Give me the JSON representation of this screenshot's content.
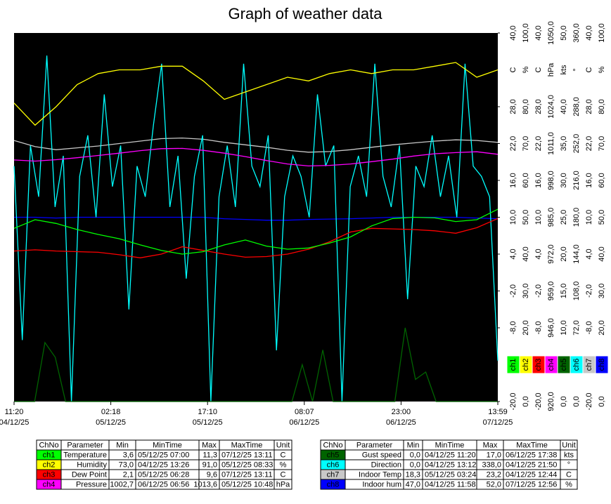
{
  "chart_data": {
    "type": "line",
    "title": "Graph of weather data",
    "x_labels": [
      {
        "time": "11:20",
        "date": "04/12/25"
      },
      {
        "time": "02:18",
        "date": "05/12/25"
      },
      {
        "time": "17:10",
        "date": "05/12/25"
      },
      {
        "time": "08:07",
        "date": "06/12/25"
      },
      {
        "time": "23:00",
        "date": "06/12/25"
      },
      {
        "time": "13:59",
        "date": "07/12/25"
      }
    ],
    "table_headers": [
      "ChNo",
      "Parameter",
      "Min",
      "MinTime",
      "Max",
      "MaxTime",
      "Unit"
    ],
    "series": [
      {
        "channel": "ch1",
        "name": "Temperature",
        "color": "#00ff00",
        "unit": "C",
        "min": "3,6",
        "min_time": "05/12/25 07:00",
        "max": "11,3",
        "max_time": "07/12/25 13:11",
        "ylim": [
          -20,
          40
        ],
        "yticks": [
          {
            "value": 40,
            "label": "40,0"
          },
          {
            "value": 28,
            "label": "28,0"
          },
          {
            "value": 22,
            "label": "22,0"
          },
          {
            "value": 16,
            "label": "16,0"
          },
          {
            "value": 10,
            "label": "10,0"
          },
          {
            "value": 4,
            "label": "4,0"
          },
          {
            "value": -2,
            "label": "-2,0"
          },
          {
            "value": -8,
            "label": "-8,0"
          },
          {
            "value": -20,
            "label": "-20,0"
          }
        ],
        "values": [
          8.2,
          9.6,
          9.0,
          8.0,
          7.2,
          6.5,
          5.5,
          4.6,
          4.0,
          4.4,
          5.5,
          6.3,
          5.3,
          4.8,
          5.0,
          5.8,
          6.8,
          8.6,
          9.8,
          10.0,
          9.9,
          9.3,
          9.6,
          11.3
        ]
      },
      {
        "channel": "ch2",
        "name": "Humidity",
        "color": "#ffff00",
        "unit": "%",
        "min": "73,0",
        "min_time": "04/12/25 13:26",
        "max": "91,0",
        "max_time": "05/12/25 08:33",
        "ylim": [
          0,
          100
        ],
        "yticks": [
          {
            "value": 100,
            "label": "100,0"
          },
          {
            "value": 80,
            "label": "80,0"
          },
          {
            "value": 70,
            "label": "70,0"
          },
          {
            "value": 60,
            "label": "60,0"
          },
          {
            "value": 50,
            "label": "50,0"
          },
          {
            "value": 40,
            "label": "40,0"
          },
          {
            "value": 30,
            "label": "30,0"
          },
          {
            "value": 20,
            "label": "20,0"
          },
          {
            "value": 0,
            "label": "0,0"
          }
        ],
        "values": [
          81,
          75,
          80,
          86,
          89,
          90,
          90,
          91,
          91,
          87,
          82,
          84,
          86,
          88,
          87,
          89,
          90,
          89,
          90,
          90,
          91,
          92,
          88,
          90
        ]
      },
      {
        "channel": "ch3",
        "name": "Dew Point",
        "color": "#ff0000",
        "unit": "C",
        "min": "2,1",
        "min_time": "05/12/25 06:28",
        "max": "9,6",
        "max_time": "07/12/25 13:11",
        "ylim": [
          -20,
          40
        ],
        "yticks": [
          {
            "value": 40,
            "label": "40,0"
          },
          {
            "value": 28,
            "label": "28,0"
          },
          {
            "value": 22,
            "label": "22,0"
          },
          {
            "value": 16,
            "label": "16,0"
          },
          {
            "value": 10,
            "label": "10,0"
          },
          {
            "value": 4,
            "label": "4,0"
          },
          {
            "value": -2,
            "label": "-2,0"
          },
          {
            "value": -8,
            "label": "-8,0"
          },
          {
            "value": -20,
            "label": "-20,0"
          }
        ],
        "values": [
          4.5,
          4.7,
          4.5,
          4.4,
          4.3,
          3.9,
          3.4,
          4.0,
          5.2,
          4.6,
          4.0,
          3.5,
          3.6,
          4.0,
          4.8,
          6.0,
          7.6,
          8.2,
          8.1,
          8.0,
          7.8,
          7.4,
          8.3,
          9.8
        ]
      },
      {
        "channel": "ch4",
        "name": "Pressure",
        "color": "#ff00ff",
        "unit": "hPa",
        "min": "1002,7",
        "min_time": "06/12/25 06:56",
        "max": "1013,6",
        "max_time": "05/12/25 10:48",
        "ylim": [
          920,
          1050
        ],
        "yticks": [
          {
            "value": 1050,
            "label": "1050,0"
          },
          {
            "value": 1024,
            "label": "1024,0"
          },
          {
            "value": 1011,
            "label": "1011,0"
          },
          {
            "value": 998,
            "label": "998,0"
          },
          {
            "value": 985,
            "label": "985,0"
          },
          {
            "value": 972,
            "label": "972,0"
          },
          {
            "value": 959,
            "label": "959,0"
          },
          {
            "value": 946,
            "label": "946,0"
          },
          {
            "value": 920,
            "label": "920,0"
          }
        ],
        "values": [
          1005.2,
          1004.8,
          1005.3,
          1006,
          1006.8,
          1007.6,
          1008.5,
          1009.2,
          1009.3,
          1008.6,
          1007.6,
          1006.4,
          1005,
          1003.8,
          1003.1,
          1003.3,
          1003.8,
          1004.6,
          1005.5,
          1006.6,
          1007.4,
          1007.8,
          1008.1,
          1007.2
        ]
      },
      {
        "channel": "ch5",
        "name": "Gust speed",
        "color": "#006400",
        "unit": "kts",
        "min": "0,0",
        "min_time": "04/12/25 11:20",
        "max": "17,0",
        "max_time": "06/12/25 17:38",
        "ylim": [
          0,
          50
        ],
        "yticks": [
          {
            "value": 50,
            "label": "50,0"
          },
          {
            "value": 40,
            "label": "40,0"
          },
          {
            "value": 35,
            "label": "35,0"
          },
          {
            "value": 30,
            "label": "30,0"
          },
          {
            "value": 25,
            "label": "25,0"
          },
          {
            "value": 20,
            "label": "20,0"
          },
          {
            "value": 15,
            "label": "15,0"
          },
          {
            "value": 10,
            "label": "10,0"
          },
          {
            "value": 0,
            "label": "0,0"
          }
        ],
        "values": [
          0,
          0,
          0,
          8,
          6,
          0,
          0,
          0,
          0,
          0,
          0,
          0,
          0,
          0,
          0,
          0,
          0,
          0,
          0,
          0,
          0,
          0,
          0,
          0,
          0,
          0,
          0,
          0,
          5,
          0,
          7,
          0,
          0,
          0,
          0,
          0,
          0,
          0,
          10,
          3,
          4,
          0,
          0,
          0,
          0,
          0,
          0,
          0
        ]
      },
      {
        "channel": "ch6",
        "name": "Direction",
        "color": "#00ffff",
        "unit": "°",
        "min": "0,0",
        "min_time": "04/12/25 13:12",
        "max": "338,0",
        "max_time": "04/12/25 21:50",
        "ylim": [
          0,
          360
        ],
        "yticks": [
          {
            "value": 360,
            "label": "360,0"
          },
          {
            "value": 288,
            "label": "288,0"
          },
          {
            "value": 252,
            "label": "252,0"
          },
          {
            "value": 216,
            "label": "216,0"
          },
          {
            "value": 180,
            "label": "180,0"
          },
          {
            "value": 144,
            "label": "144,0"
          },
          {
            "value": 108,
            "label": "108,0"
          },
          {
            "value": 72,
            "label": "72,0"
          },
          {
            "value": 0,
            "label": "0,0"
          }
        ],
        "values": [
          230,
          60,
          250,
          200,
          338,
          190,
          240,
          0,
          220,
          260,
          180,
          300,
          210,
          250,
          90,
          230,
          200,
          270,
          330,
          190,
          240,
          120,
          220,
          260,
          0,
          200,
          250,
          190,
          330,
          230,
          210,
          260,
          50,
          200,
          240,
          220,
          180,
          300,
          230,
          250,
          0,
          210,
          240,
          200,
          330,
          220,
          190,
          250,
          100,
          230,
          210,
          260,
          200,
          240,
          180,
          330,
          230,
          220,
          200,
          40
        ]
      },
      {
        "channel": "ch7",
        "name": "Indoor Temp",
        "color": "#c8c8c8",
        "unit": "C",
        "min": "18,3",
        "min_time": "05/12/25 03:24",
        "max": "23,2",
        "max_time": "04/12/25 12:44",
        "ylim": [
          -20,
          40
        ],
        "yticks": [
          {
            "value": 40,
            "label": "40,0"
          },
          {
            "value": 28,
            "label": "28,0"
          },
          {
            "value": 22,
            "label": "22,0"
          },
          {
            "value": 16,
            "label": "16,0"
          },
          {
            "value": 10,
            "label": "10,0"
          },
          {
            "value": 4,
            "label": "4,0"
          },
          {
            "value": -2,
            "label": "-2,0"
          },
          {
            "value": -8,
            "label": "-8,0"
          },
          {
            "value": -20,
            "label": "-20,0"
          }
        ],
        "values": [
          22.5,
          21.5,
          21,
          21.3,
          21.6,
          22,
          22.4,
          22.8,
          22.9,
          22.7,
          22.2,
          21.8,
          21.4,
          20.9,
          20.6,
          20.7,
          21,
          21.4,
          21.8,
          22.1,
          22.4,
          22.6,
          22.5,
          22.2
        ]
      },
      {
        "channel": "ch8",
        "name": "Indoor hum",
        "color": "#0000ff",
        "unit": "%",
        "min": "47,0",
        "min_time": "04/12/25 11:58",
        "max": "52,0",
        "max_time": "07/12/25 12:56",
        "ylim": [
          0,
          100
        ],
        "yticks": [
          {
            "value": 100,
            "label": "100,0"
          },
          {
            "value": 80,
            "label": "80,0"
          },
          {
            "value": 70,
            "label": "70,0"
          },
          {
            "value": 60,
            "label": "60,0"
          },
          {
            "value": 50,
            "label": "50,0"
          },
          {
            "value": 40,
            "label": "40,0"
          },
          {
            "value": 30,
            "label": "30,0"
          },
          {
            "value": 20,
            "label": "20,0"
          },
          {
            "value": 0,
            "label": "0,0"
          }
        ],
        "values": [
          50,
          50,
          49.8,
          50,
          50,
          50,
          50,
          50,
          50,
          50,
          49.6,
          49.4,
          49.2,
          49.2,
          49.4,
          49.5,
          49.6,
          49.8,
          50,
          50,
          50,
          50,
          49.8,
          49.6
        ]
      }
    ]
  }
}
